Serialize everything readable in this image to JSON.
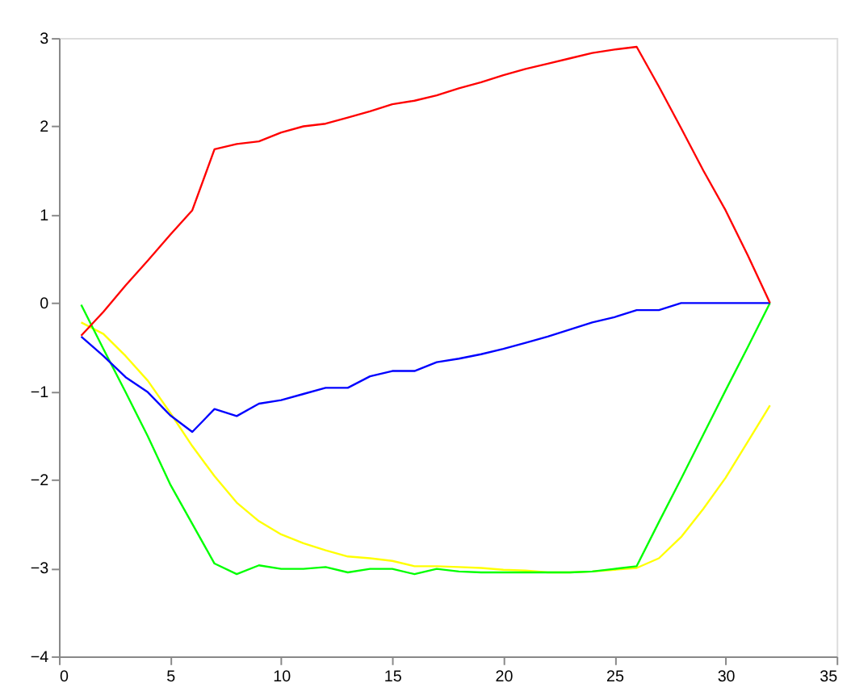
{
  "chart_data": {
    "type": "line",
    "x": [
      1,
      2,
      3,
      4,
      5,
      6,
      7,
      8,
      9,
      10,
      11,
      12,
      13,
      14,
      15,
      16,
      17,
      18,
      19,
      20,
      21,
      22,
      23,
      24,
      25,
      26,
      27,
      28,
      29,
      30,
      31,
      32
    ],
    "series": [
      {
        "color": "#ff0000",
        "values": [
          -0.37,
          -0.1,
          0.2,
          0.48,
          0.77,
          1.05,
          1.74,
          1.8,
          1.83,
          1.93,
          2.0,
          2.03,
          2.1,
          2.17,
          2.25,
          2.29,
          2.35,
          2.43,
          2.5,
          2.58,
          2.65,
          2.71,
          2.77,
          2.83,
          2.87,
          2.9,
          2.45,
          1.98,
          1.5,
          1.05,
          0.54,
          0
        ]
      },
      {
        "color": "#0000ff",
        "values": [
          -0.38,
          -0.6,
          -0.84,
          -1.01,
          -1.27,
          -1.46,
          -1.2,
          -1.28,
          -1.14,
          -1.1,
          -1.03,
          -0.96,
          -0.96,
          -0.83,
          -0.77,
          -0.77,
          -0.67,
          -0.63,
          -0.58,
          -0.52,
          -0.45,
          -0.38,
          -0.3,
          -0.22,
          -0.16,
          -0.08,
          -0.08,
          0,
          0,
          0,
          0,
          0
        ]
      },
      {
        "color": "#00ff00",
        "values": [
          -0.02,
          -0.52,
          -1.01,
          -1.51,
          -2.05,
          -2.5,
          -2.95,
          -3.07,
          -2.97,
          -3.01,
          -3.01,
          -2.99,
          -3.05,
          -3.01,
          -3.01,
          -3.07,
          -3.01,
          -3.04,
          -3.05,
          -3.05,
          -3.05,
          -3.05,
          -3.05,
          -3.04,
          -3.01,
          -2.98,
          -2.48,
          -1.99,
          -1.49,
          -0.99,
          -0.5,
          0
        ]
      },
      {
        "color": "#ffff00",
        "values": [
          -0.22,
          -0.35,
          -0.6,
          -0.88,
          -1.24,
          -1.62,
          -1.96,
          -2.26,
          -2.47,
          -2.62,
          -2.72,
          -2.8,
          -2.87,
          -2.89,
          -2.92,
          -2.98,
          -2.98,
          -2.99,
          -3.0,
          -3.02,
          -3.03,
          -3.05,
          -3.05,
          -3.04,
          -3.02,
          -3.0,
          -2.89,
          -2.65,
          -2.33,
          -1.98,
          -1.57,
          -1.16
        ]
      }
    ],
    "xlim": [
      0,
      35
    ],
    "xticks": [
      0,
      5,
      10,
      15,
      20,
      25,
      30,
      35
    ],
    "ylim": [
      -4,
      3
    ],
    "yticks": [
      -4,
      -3,
      -2,
      -1,
      0,
      1,
      2,
      3
    ],
    "grid": false,
    "legend": false,
    "marker": "none",
    "line_style": "solid"
  }
}
